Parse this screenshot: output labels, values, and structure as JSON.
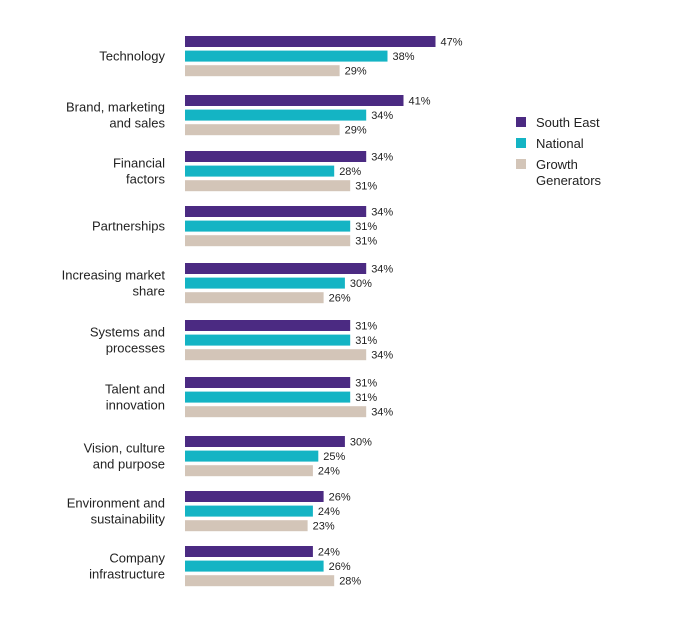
{
  "chart_data": {
    "type": "bar",
    "orientation": "horizontal",
    "categories": [
      [
        "Technology"
      ],
      [
        "Brand, marketing",
        "and sales"
      ],
      [
        "Financial",
        "factors"
      ],
      [
        "Partnerships"
      ],
      [
        "Increasing market",
        "share"
      ],
      [
        "Systems and",
        "processes"
      ],
      [
        "Talent and",
        "innovation"
      ],
      [
        "Vision, culture",
        "and purpose"
      ],
      [
        "Environment and",
        "sustainability"
      ],
      [
        "Company",
        "infrastructure"
      ]
    ],
    "series": [
      {
        "name": "South East",
        "color": "#4b2a82",
        "values": [
          47,
          41,
          34,
          34,
          34,
          31,
          31,
          30,
          26,
          24
        ]
      },
      {
        "name": "National",
        "color": "#14b4c4",
        "values": [
          38,
          34,
          28,
          31,
          30,
          31,
          31,
          25,
          24,
          26
        ]
      },
      {
        "name": "Growth Generators",
        "legend_lines": [
          "Growth",
          "Generators"
        ],
        "color": "#d3c5b8",
        "values": [
          29,
          29,
          31,
          31,
          26,
          34,
          34,
          24,
          23,
          28
        ]
      }
    ],
    "value_suffix": "%",
    "legend_position": "right",
    "grid": false,
    "title": "",
    "xlabel": "",
    "ylabel": ""
  }
}
